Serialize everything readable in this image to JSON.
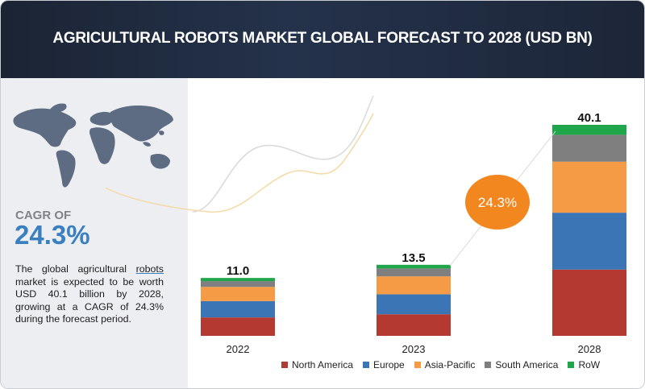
{
  "header": {
    "title": "AGRICULTURAL ROBOTS MARKET GLOBAL FORECAST TO 2028 (USD BN)"
  },
  "cagr": {
    "label": "CAGR OF",
    "value": "24.3%",
    "bubble": "24.3%"
  },
  "description": {
    "part1": "The global agricultural ",
    "link": "robots",
    "part2": " market is expected to be worth USD 40.1 billion by 2028, growing at a CAGR of 24.3% during the forecast period."
  },
  "colors": {
    "North America": "#b43a31",
    "Europe": "#3b75b5",
    "Asia-Pacific": "#f59a45",
    "South America": "#7f7f7f",
    "RoW": "#1fa64a",
    "bubble": "#f3871f",
    "cagr_text": "#3a7fc0"
  },
  "chart_data": {
    "type": "bar",
    "stacked": true,
    "categories": [
      "2022",
      "2023",
      "2028"
    ],
    "totals": [
      11.0,
      13.5,
      40.1
    ],
    "total_labels": [
      "11.0",
      "13.5",
      "40.1"
    ],
    "series": [
      {
        "name": "North America",
        "values": [
          3.5,
          4.1,
          12.6
        ]
      },
      {
        "name": "Europe",
        "values": [
          3.1,
          3.8,
          10.8
        ]
      },
      {
        "name": "Asia-Pacific",
        "values": [
          2.7,
          3.4,
          9.7
        ]
      },
      {
        "name": "South America",
        "values": [
          1.1,
          1.5,
          5.1
        ]
      },
      {
        "name": "RoW",
        "values": [
          0.6,
          0.7,
          1.9
        ]
      }
    ],
    "title": "AGRICULTURAL ROBOTS MARKET GLOBAL FORECAST TO 2028 (USD BN)",
    "xlabel": "",
    "ylabel": "",
    "ylim": [
      0,
      40.1
    ],
    "grid": false,
    "legend": "bottom"
  }
}
